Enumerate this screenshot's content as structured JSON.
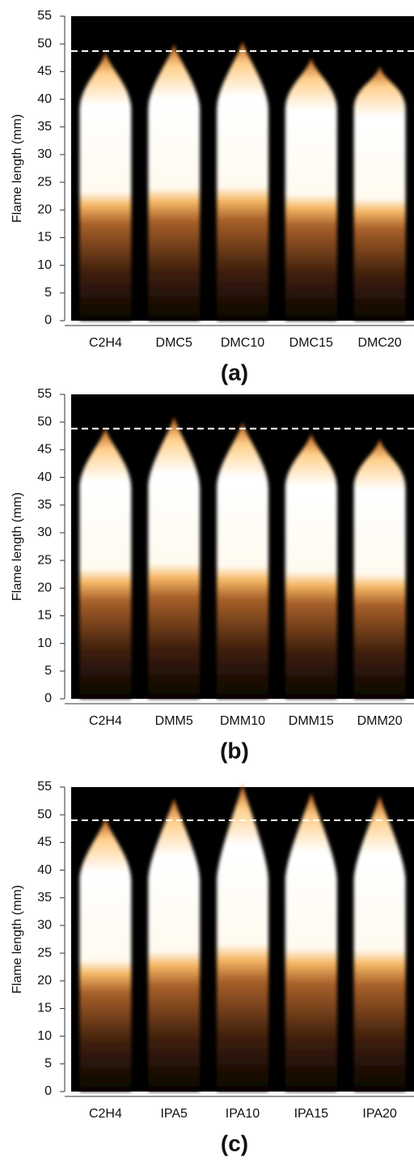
{
  "chart_data": [
    {
      "type": "flame",
      "panel_label": "(a)",
      "ylabel": "Flame length (mm)",
      "categories": [
        "C2H4",
        "DMC5",
        "DMC10",
        "DMC15",
        "DMC20"
      ],
      "values": [
        48.5,
        50,
        50.5,
        47.5,
        46
      ],
      "reference_line": 48.7,
      "ylim": [
        0,
        55
      ],
      "yticks": [
        0,
        5,
        10,
        15,
        20,
        25,
        30,
        35,
        40,
        45,
        50,
        55
      ]
    },
    {
      "type": "flame",
      "panel_label": "(b)",
      "ylabel": "Flame length (mm)",
      "categories": [
        "C2H4",
        "DMM5",
        "DMM10",
        "DMM15",
        "DMM20"
      ],
      "values": [
        49,
        51,
        50,
        48,
        47
      ],
      "reference_line": 48.8,
      "ylim": [
        0,
        55
      ],
      "yticks": [
        0,
        5,
        10,
        15,
        20,
        25,
        30,
        35,
        40,
        45,
        50,
        55
      ]
    },
    {
      "type": "flame",
      "panel_label": "(c)",
      "ylabel": "Flame length (mm)",
      "categories": [
        "C2H4",
        "IPA5",
        "IPA10",
        "IPA15",
        "IPA20"
      ],
      "values": [
        49.5,
        53,
        55.5,
        54,
        53.5
      ],
      "reference_line": 49,
      "ylim": [
        0,
        55
      ],
      "yticks": [
        0,
        5,
        10,
        15,
        20,
        25,
        30,
        35,
        40,
        45,
        50,
        55
      ]
    }
  ]
}
